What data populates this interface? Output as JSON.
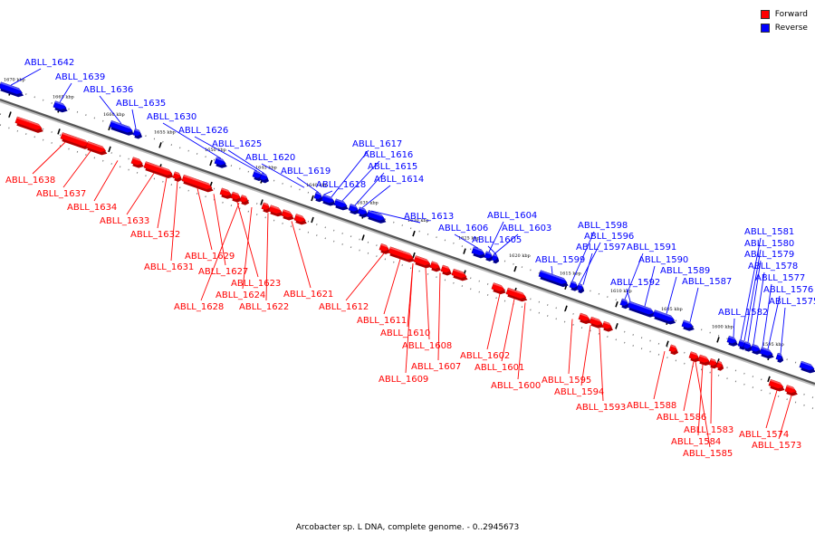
{
  "legend": [
    {
      "label": "Forward",
      "color": "#ff0000"
    },
    {
      "label": "Reverse",
      "color": "#0000ff"
    }
  ],
  "caption": "Arcobacter sp. L DNA, complete genome. - 0..2945673",
  "colors": {
    "forward": "#ff0000",
    "reverse": "#0000ff",
    "backbone": "#555555"
  },
  "scale": {
    "unit": "kbp",
    "ticks": [
      1670,
      1665,
      1660,
      1655,
      1650,
      1645,
      1640,
      1635,
      1630,
      1625,
      1620,
      1615,
      1610,
      1605,
      1600,
      1595
    ]
  },
  "genes": [
    {
      "name": "ABLL_1642",
      "strand": "reverse"
    },
    {
      "name": "ABLL_1639",
      "strand": "reverse"
    },
    {
      "name": "ABLL_1636",
      "strand": "reverse"
    },
    {
      "name": "ABLL_1635",
      "strand": "reverse"
    },
    {
      "name": "ABLL_1630",
      "strand": "reverse"
    },
    {
      "name": "ABLL_1626",
      "strand": "reverse"
    },
    {
      "name": "ABLL_1625",
      "strand": "reverse"
    },
    {
      "name": "ABLL_1620",
      "strand": "reverse"
    },
    {
      "name": "ABLL_1619",
      "strand": "reverse"
    },
    {
      "name": "ABLL_1618",
      "strand": "reverse"
    },
    {
      "name": "ABLL_1617",
      "strand": "reverse"
    },
    {
      "name": "ABLL_1616",
      "strand": "reverse"
    },
    {
      "name": "ABLL_1615",
      "strand": "reverse"
    },
    {
      "name": "ABLL_1614",
      "strand": "reverse"
    },
    {
      "name": "ABLL_1613",
      "strand": "reverse"
    },
    {
      "name": "ABLL_1606",
      "strand": "reverse"
    },
    {
      "name": "ABLL_1604",
      "strand": "reverse"
    },
    {
      "name": "ABLL_1603",
      "strand": "reverse"
    },
    {
      "name": "ABLL_1605",
      "strand": "reverse"
    },
    {
      "name": "ABLL_1599",
      "strand": "reverse"
    },
    {
      "name": "ABLL_1598",
      "strand": "reverse"
    },
    {
      "name": "ABLL_1596",
      "strand": "reverse"
    },
    {
      "name": "ABLL_1597",
      "strand": "reverse"
    },
    {
      "name": "ABLL_1591",
      "strand": "reverse"
    },
    {
      "name": "ABLL_1590",
      "strand": "reverse"
    },
    {
      "name": "ABLL_1589",
      "strand": "reverse"
    },
    {
      "name": "ABLL_1592",
      "strand": "reverse"
    },
    {
      "name": "ABLL_1587",
      "strand": "reverse"
    },
    {
      "name": "ABLL_1582",
      "strand": "reverse"
    },
    {
      "name": "ABLL_1581",
      "strand": "reverse"
    },
    {
      "name": "ABLL_1580",
      "strand": "reverse"
    },
    {
      "name": "ABLL_1579",
      "strand": "reverse"
    },
    {
      "name": "ABLL_1578",
      "strand": "reverse"
    },
    {
      "name": "ABLL_1577",
      "strand": "reverse"
    },
    {
      "name": "ABLL_1576",
      "strand": "reverse"
    },
    {
      "name": "ABLL_1575",
      "strand": "reverse"
    },
    {
      "name": "ABLL_1638",
      "strand": "forward"
    },
    {
      "name": "ABLL_1637",
      "strand": "forward"
    },
    {
      "name": "ABLL_1634",
      "strand": "forward"
    },
    {
      "name": "ABLL_1633",
      "strand": "forward"
    },
    {
      "name": "ABLL_1632",
      "strand": "forward"
    },
    {
      "name": "ABLL_1631",
      "strand": "forward"
    },
    {
      "name": "ABLL_1629",
      "strand": "forward"
    },
    {
      "name": "ABLL_1627",
      "strand": "forward"
    },
    {
      "name": "ABLL_1623",
      "strand": "forward"
    },
    {
      "name": "ABLL_1624",
      "strand": "forward"
    },
    {
      "name": "ABLL_1628",
      "strand": "forward"
    },
    {
      "name": "ABLL_1622",
      "strand": "forward"
    },
    {
      "name": "ABLL_1621",
      "strand": "forward"
    },
    {
      "name": "ABLL_1612",
      "strand": "forward"
    },
    {
      "name": "ABLL_1611",
      "strand": "forward"
    },
    {
      "name": "ABLL_1610",
      "strand": "forward"
    },
    {
      "name": "ABLL_1608",
      "strand": "forward"
    },
    {
      "name": "ABLL_1607",
      "strand": "forward"
    },
    {
      "name": "ABLL_1609",
      "strand": "forward"
    },
    {
      "name": "ABLL_1602",
      "strand": "forward"
    },
    {
      "name": "ABLL_1601",
      "strand": "forward"
    },
    {
      "name": "ABLL_1600",
      "strand": "forward"
    },
    {
      "name": "ABLL_1595",
      "strand": "forward"
    },
    {
      "name": "ABLL_1594",
      "strand": "forward"
    },
    {
      "name": "ABLL_1593",
      "strand": "forward"
    },
    {
      "name": "ABLL_1588",
      "strand": "forward"
    },
    {
      "name": "ABLL_1586",
      "strand": "forward"
    },
    {
      "name": "ABLL_1583",
      "strand": "forward"
    },
    {
      "name": "ABLL_1584",
      "strand": "forward"
    },
    {
      "name": "ABLL_1585",
      "strand": "forward"
    },
    {
      "name": "ABLL_1574",
      "strand": "forward"
    },
    {
      "name": "ABLL_1573",
      "strand": "forward"
    }
  ]
}
